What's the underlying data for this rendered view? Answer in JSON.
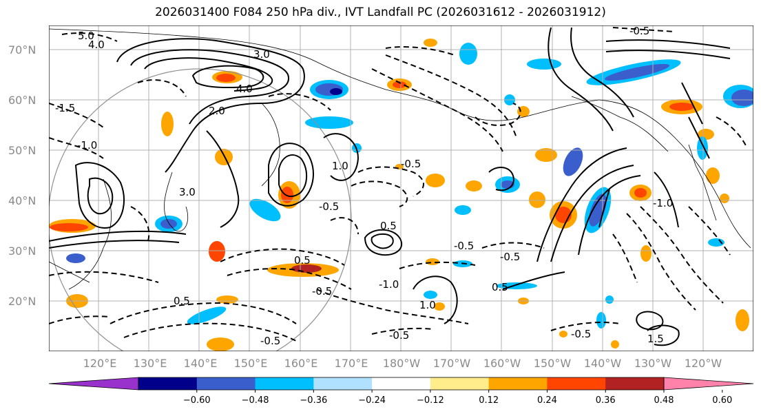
{
  "title": "2026031400 F084 250 hPa div., IVT Landfall PC (2026031612 - 2026031912)",
  "map": {
    "lat_labels": [
      "70°N",
      "60°N",
      "50°N",
      "40°N",
      "30°N",
      "20°N"
    ],
    "lon_labels": [
      "120°E",
      "130°E",
      "140°E",
      "150°E",
      "160°E",
      "170°E",
      "180°W",
      "170°W",
      "160°W",
      "150°W",
      "140°W",
      "130°W",
      "120°W"
    ],
    "contour_labels": [
      "5.0",
      "4.0",
      "3.0",
      "-0.5",
      "4.0",
      "2.0",
      "-1.0",
      "-1.5",
      "3.0",
      "1.0",
      "-0.5",
      "-0.5",
      "0.5",
      "-0.5",
      "0.5",
      "-1.0",
      "0.5",
      "-0.5",
      "1.0",
      "-0.5",
      "-0.5",
      "-0.5",
      "1.5",
      "-0.5",
      "-1.0",
      "0.5"
    ]
  },
  "colorbar": {
    "tick_labels": [
      "−0.60",
      "−0.48",
      "−0.36",
      "−0.24",
      "−0.12",
      "0.12",
      "0.24",
      "0.36",
      "0.48",
      "0.60"
    ],
    "colors": [
      "#9932cc",
      "#00008b",
      "#3a5fcd",
      "#00bfff",
      "#b0e2ff",
      "#ffffff",
      "#ffec8b",
      "#ffa500",
      "#ff4500",
      "#b22222",
      "#ff82ab"
    ]
  }
}
